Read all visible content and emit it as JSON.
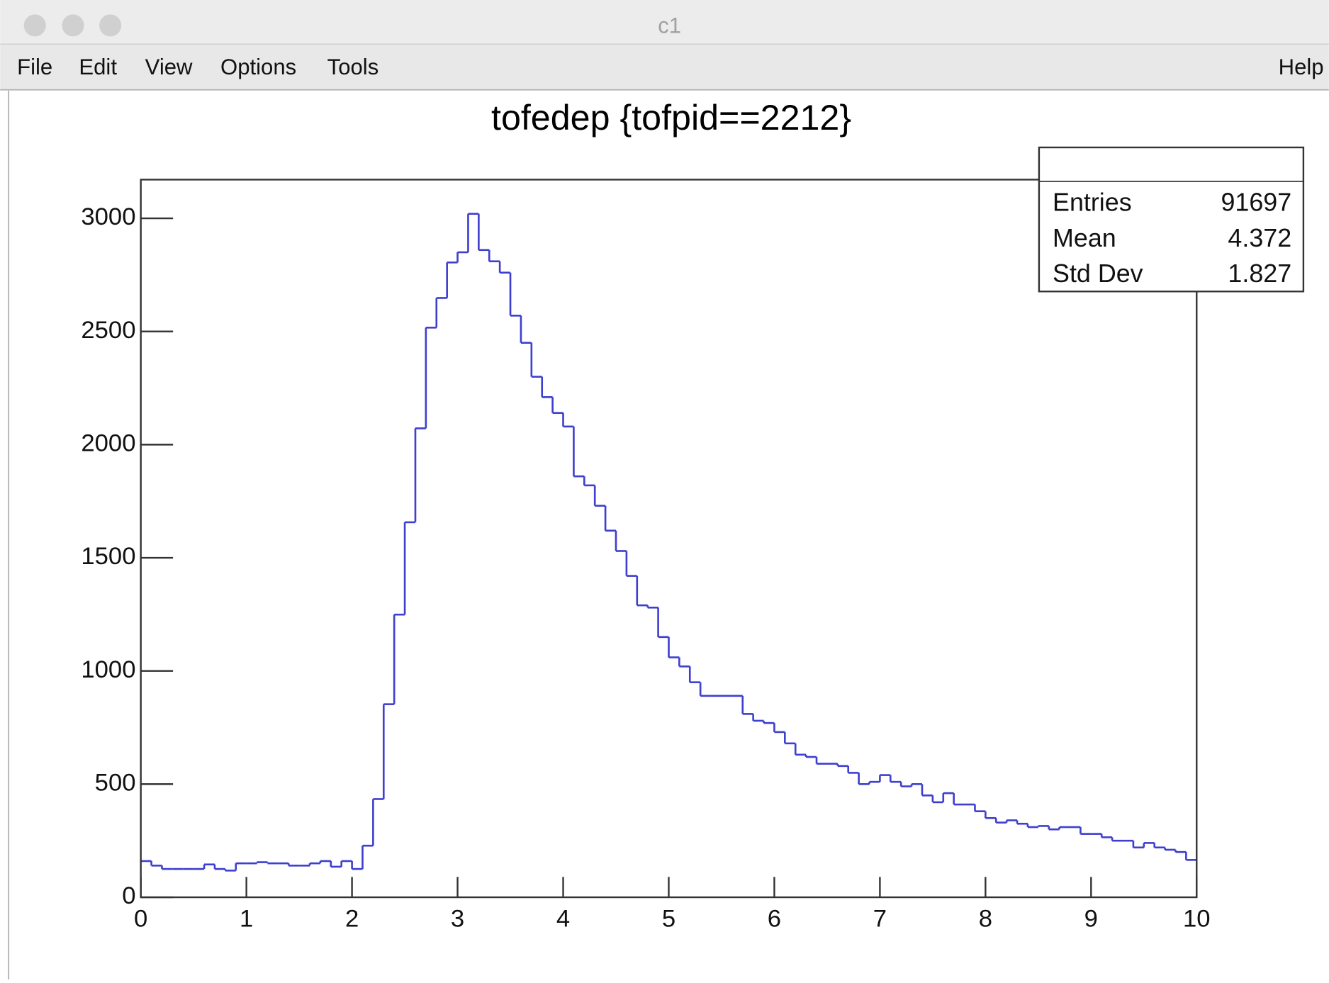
{
  "window": {
    "title": "c1"
  },
  "menu": [
    "File",
    "Edit",
    "View",
    "Options",
    "Tools"
  ],
  "help": "Help",
  "chart_data": {
    "type": "histogram",
    "title": "tofedep {tofpid==2212}",
    "color": "#3f3fcf",
    "bins": [
      0,
      0.1,
      0.2,
      0.3,
      0.4,
      0.5,
      0.6,
      0.7,
      0.8,
      0.9,
      1,
      1.1,
      1.2,
      1.3,
      1.4,
      1.5,
      1.6,
      1.7,
      1.8,
      1.9,
      2,
      2.1,
      2.2,
      2.3,
      2.4,
      2.5,
      2.6,
      2.7,
      2.8,
      2.9,
      3,
      3.1,
      3.2,
      3.3,
      3.4,
      3.5,
      3.6,
      3.7,
      3.8,
      3.9,
      4,
      4.1,
      4.2,
      4.3,
      4.4,
      4.5,
      4.6,
      4.7,
      4.8,
      4.9,
      5,
      5.1,
      5.2,
      5.3,
      5.4,
      5.5,
      5.6,
      5.7,
      5.8,
      5.9,
      6,
      6.1,
      6.2,
      6.3,
      6.4,
      6.5,
      6.6,
      6.7,
      6.8,
      6.9,
      7,
      7.1,
      7.2,
      7.3,
      7.4,
      7.5,
      7.6,
      7.7,
      7.8,
      7.9,
      8,
      8.1,
      8.2,
      8.3,
      8.4,
      8.5,
      8.6,
      8.7,
      8.8,
      8.9,
      9,
      9.1,
      9.2,
      9.3,
      9.4,
      9.5,
      9.6,
      9.7,
      9.8,
      9.9,
      10
    ],
    "values": [
      160,
      140,
      125,
      125,
      125,
      125,
      145,
      125,
      118,
      150,
      150,
      155,
      150,
      150,
      140,
      140,
      150,
      160,
      135,
      160,
      125,
      228,
      434,
      853,
      1249,
      1657,
      2072,
      2517,
      2648,
      2805,
      2850,
      3020,
      2860,
      2810,
      2760,
      2570,
      2450,
      2300,
      2210,
      2140,
      2080,
      1860,
      1820,
      1730,
      1620,
      1530,
      1420,
      1290,
      1280,
      1150,
      1060,
      1020,
      950,
      890,
      890,
      890,
      890,
      810,
      780,
      770,
      730,
      680,
      630,
      620,
      590,
      590,
      580,
      550,
      500,
      510,
      540,
      510,
      490,
      500,
      450,
      420,
      460,
      410,
      410,
      380,
      350,
      330,
      340,
      325,
      310,
      315,
      300,
      310,
      310,
      280,
      280,
      265,
      250,
      250,
      220,
      240,
      220,
      210,
      200,
      165
    ],
    "xlim": [
      0,
      10
    ],
    "xticks": [
      0,
      1,
      2,
      3,
      4,
      5,
      6,
      7,
      8,
      9,
      10
    ],
    "ylim": [
      0,
      3171
    ],
    "yticks": [
      0,
      500,
      1000,
      1500,
      2000,
      2500,
      3000
    ],
    "stats": [
      {
        "name": "Entries",
        "value": 91697
      },
      {
        "name": "Mean",
        "value": 4.372
      },
      {
        "name": "Std Dev",
        "value": 1.827
      }
    ]
  }
}
